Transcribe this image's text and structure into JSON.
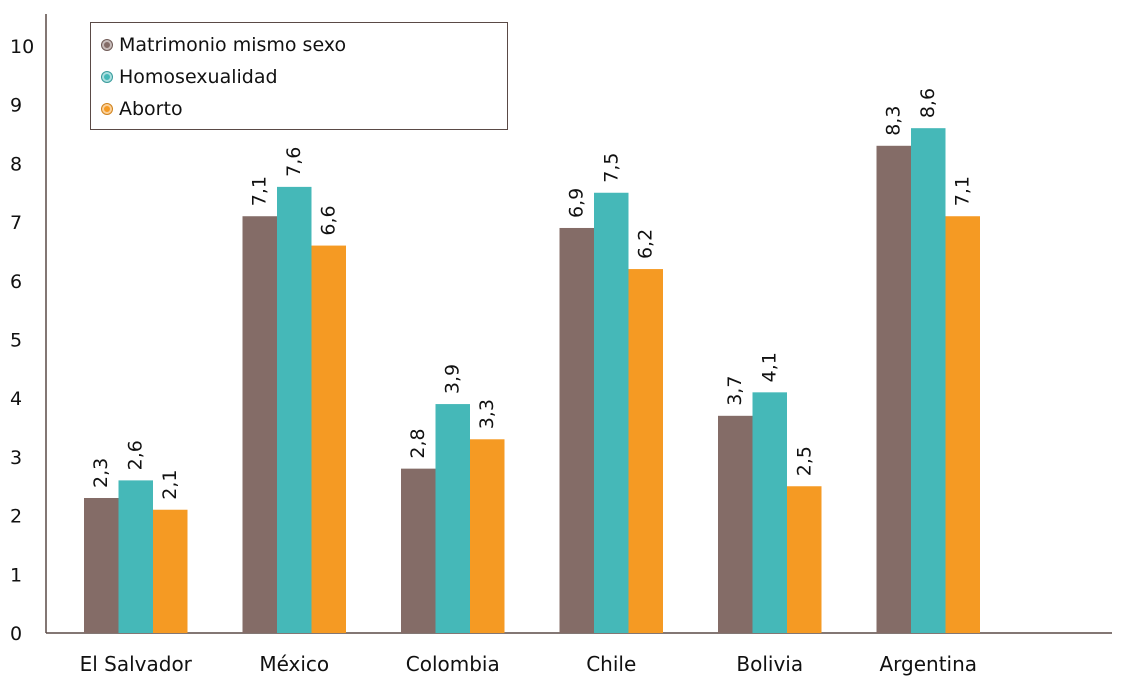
{
  "chart_data": {
    "type": "bar",
    "categories": [
      "El Salvador",
      "México",
      "Colombia",
      "Chile",
      "Bolivia",
      "Argentina"
    ],
    "series": [
      {
        "name": "Matrimonio mismo sexo",
        "color": "#846c67",
        "values": [
          2.3,
          7.1,
          2.8,
          6.9,
          3.7,
          8.3
        ]
      },
      {
        "name": "Homosexualidad",
        "color": "#45b8b8",
        "values": [
          2.6,
          7.6,
          3.9,
          7.5,
          4.1,
          8.6
        ]
      },
      {
        "name": "Aborto",
        "color": "#f59a23",
        "values": [
          2.1,
          6.6,
          3.3,
          6.2,
          2.5,
          7.1
        ]
      }
    ],
    "data_labels": [
      [
        "2,3",
        "7,1",
        "2,8",
        "6,9",
        "3,7",
        "8,3"
      ],
      [
        "2,6",
        "7,6",
        "3,9",
        "7,5",
        "4,1",
        "8,6"
      ],
      [
        "2,1",
        "6,6",
        "3,3",
        "6,2",
        "2,5",
        "7,1"
      ]
    ],
    "yticks": [
      "0",
      "1",
      "2",
      "3",
      "4",
      "5",
      "6",
      "7",
      "8",
      "9",
      "10"
    ],
    "ylim": [
      0,
      10
    ],
    "grid": false,
    "legend_position": "top-left"
  }
}
